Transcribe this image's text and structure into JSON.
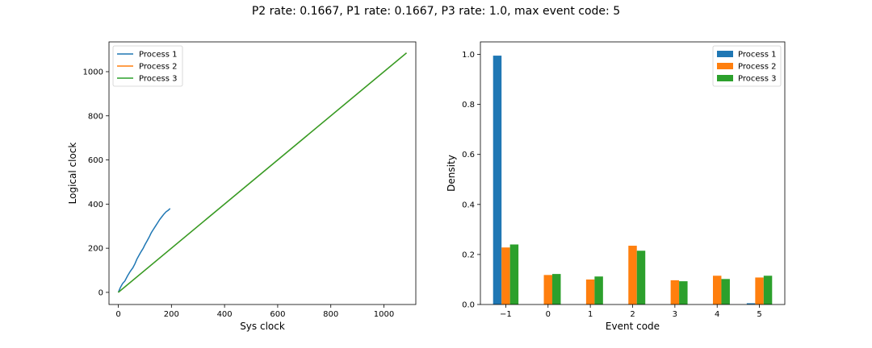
{
  "figure": {
    "suptitle": "P2 rate: 0.1667, P1 rate: 0.1667, P3 rate: 1.0, max event code: 5"
  },
  "chart_data": [
    {
      "type": "line",
      "xlabel": "Sys clock",
      "ylabel": "Logical clock",
      "xlim": [
        -35,
        1120
      ],
      "ylim": [
        -55,
        1135
      ],
      "xticks": [
        0,
        200,
        400,
        600,
        800,
        1000
      ],
      "yticks": [
        0,
        200,
        400,
        600,
        800,
        1000
      ],
      "legend": "upper left",
      "series": [
        {
          "name": "Process 1",
          "color": "#1f77b4",
          "x": [
            0,
            8,
            16,
            25,
            35,
            45,
            55,
            63,
            70,
            78,
            86,
            94,
            100,
            108,
            116,
            124,
            132,
            140,
            148,
            156,
            164,
            172,
            180,
            188,
            195
          ],
          "y": [
            0,
            22,
            40,
            52,
            75,
            95,
            112,
            130,
            150,
            168,
            185,
            200,
            215,
            232,
            250,
            270,
            285,
            300,
            315,
            330,
            343,
            355,
            365,
            372,
            380
          ]
        },
        {
          "name": "Process 2",
          "color": "#ff7f0e",
          "x": [
            0,
            1085
          ],
          "y": [
            0,
            1085
          ]
        },
        {
          "name": "Process 3",
          "color": "#2ca02c",
          "x": [
            0,
            1085
          ],
          "y": [
            0,
            1085
          ]
        }
      ]
    },
    {
      "type": "bar",
      "xlabel": "Event code",
      "ylabel": "Density",
      "categories": [
        "−1",
        "0",
        "1",
        "2",
        "3",
        "4",
        "5"
      ],
      "ylim": [
        0,
        1.05
      ],
      "yticks": [
        "0.0",
        "0.2",
        "0.4",
        "0.6",
        "0.8",
        "1.0"
      ],
      "legend": "upper right",
      "series": [
        {
          "name": "Process 1",
          "color": "#1f77b4",
          "values": [
            0.995,
            0,
            0,
            0,
            0,
            0,
            0.005
          ]
        },
        {
          "name": "Process 2",
          "color": "#ff7f0e",
          "values": [
            0.228,
            0.118,
            0.1,
            0.235,
            0.097,
            0.115,
            0.108
          ]
        },
        {
          "name": "Process 3",
          "color": "#2ca02c",
          "values": [
            0.24,
            0.122,
            0.112,
            0.215,
            0.093,
            0.102,
            0.115
          ]
        }
      ]
    }
  ]
}
